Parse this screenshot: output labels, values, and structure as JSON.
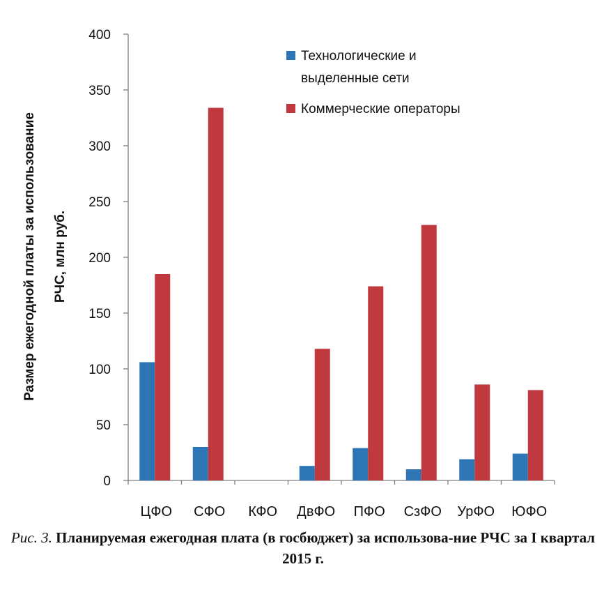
{
  "chart_data": {
    "type": "bar",
    "categories": [
      "ЦФО",
      "СФО",
      "КФО",
      "ДвФО",
      "ПФО",
      "СзФО",
      "УрФО",
      "ЮФО"
    ],
    "series": [
      {
        "name": "Технологические и выделенные сети",
        "values": [
          106,
          30,
          0,
          13,
          29,
          10,
          19,
          24
        ],
        "color": "#2e75b6"
      },
      {
        "name": "Коммерческие операторы",
        "values": [
          185,
          334,
          0,
          118,
          174,
          229,
          86,
          81
        ],
        "color": "#c0393e"
      }
    ],
    "ylim": [
      0,
      400
    ],
    "yticks": [
      0,
      50,
      100,
      150,
      200,
      250,
      300,
      350,
      400
    ],
    "ylabel_line1": "Размер ежегодной платы за использование",
    "ylabel_line2": "РЧС, млн руб.",
    "legend": {
      "position": "top-right",
      "items": [
        {
          "line1": "Технологические и",
          "line2": "выделенные сети",
          "color": "#2e75b6"
        },
        {
          "line1": "Коммерческие операторы",
          "line2": "",
          "color": "#c0393e"
        }
      ]
    },
    "grid": false
  },
  "caption": {
    "figure_label": "Рис. 3.",
    "title": "Планируемая ежегодная плата (в госбюджет) за использова-ние РЧС за I квартал 2015 г."
  }
}
